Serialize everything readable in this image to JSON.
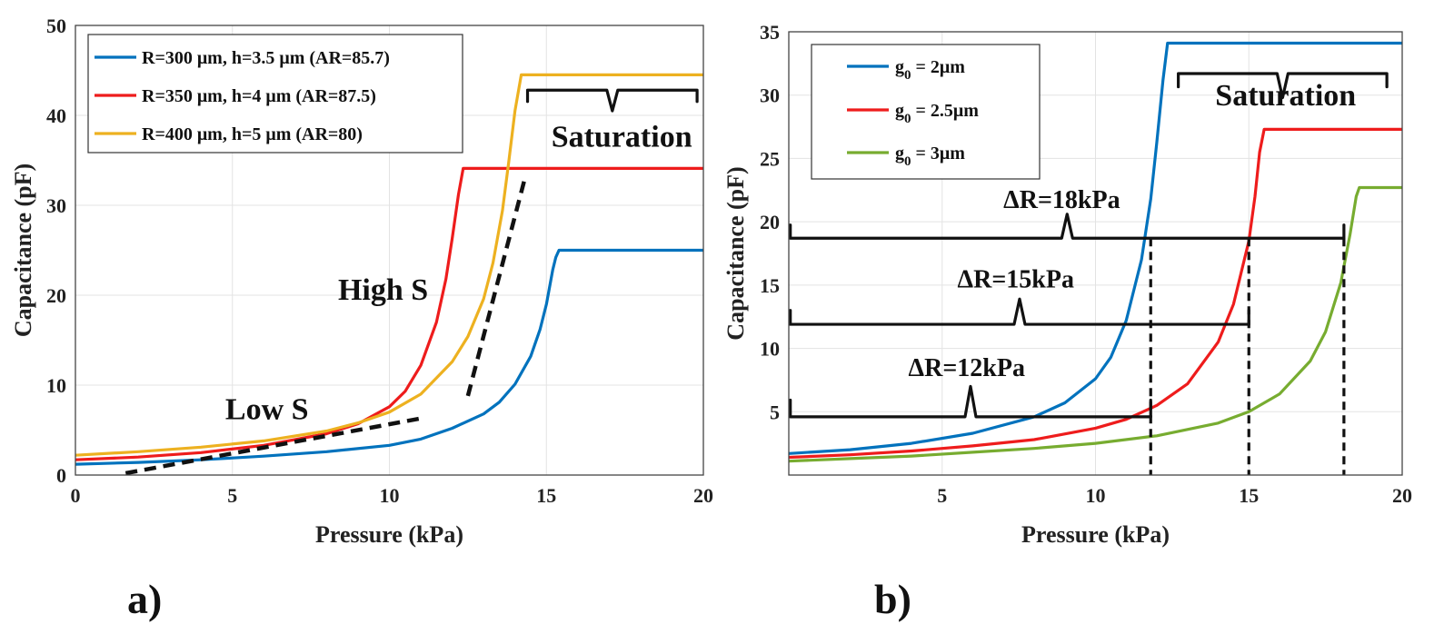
{
  "chart_data": [
    {
      "panel_label": "a)",
      "type": "line",
      "xlabel": "Pressure (kPa)",
      "ylabel": "Capacitance (pF)",
      "xlim": [
        0,
        20
      ],
      "ylim": [
        0,
        50
      ],
      "xticks": [
        0,
        5,
        10,
        15,
        20
      ],
      "yticks": [
        0,
        10,
        20,
        30,
        40,
        50
      ],
      "grid": true,
      "legend_position": "top-left",
      "series": [
        {
          "name": "R=300 μm, h=3.5 μm (AR=85.7)",
          "color": "#0072bd",
          "x": [
            0,
            2,
            4,
            6,
            8,
            10,
            11,
            12,
            13,
            13.5,
            14,
            14.5,
            14.8,
            15,
            15.2,
            15.3,
            15.4,
            20
          ],
          "y": [
            1.2,
            1.4,
            1.7,
            2.1,
            2.6,
            3.3,
            4.0,
            5.2,
            6.8,
            8.1,
            10.1,
            13.2,
            16.2,
            19.0,
            22.8,
            24.2,
            25.0,
            25.0
          ]
        },
        {
          "name": "R=350 μm, h=4 μm (AR=87.5)",
          "color": "#ee1c1c",
          "x": [
            0,
            2,
            4,
            6,
            8,
            9,
            10,
            10.5,
            11,
            11.5,
            11.8,
            12,
            12.2,
            12.35,
            20
          ],
          "y": [
            1.7,
            2.0,
            2.5,
            3.3,
            4.6,
            5.7,
            7.6,
            9.3,
            12.2,
            17.0,
            21.8,
            26.3,
            31.2,
            34.1,
            34.1
          ]
        },
        {
          "name": "R=400 μm, h=5 μm (AR=80)",
          "color": "#edb120",
          "x": [
            0,
            2,
            4,
            6,
            8,
            9,
            10,
            11,
            12,
            12.5,
            13,
            13.3,
            13.6,
            13.8,
            14,
            14.2,
            20
          ],
          "y": [
            2.2,
            2.6,
            3.1,
            3.8,
            4.9,
            5.8,
            7.0,
            9.0,
            12.6,
            15.4,
            19.6,
            23.6,
            29.4,
            34.8,
            40.5,
            44.5,
            44.5
          ]
        }
      ],
      "guides": [
        {
          "type": "dashed-line",
          "x": [
            1.6,
            11.0
          ],
          "y": [
            0.2,
            6.3
          ]
        },
        {
          "type": "dashed-line",
          "x": [
            12.5,
            14.3
          ],
          "y": [
            8.8,
            32.8
          ]
        }
      ],
      "annotations": [
        {
          "text": "Low S",
          "x": 6.1,
          "y": 6.2
        },
        {
          "text": "High S",
          "x": 9.8,
          "y": 19.5
        },
        {
          "text": "Saturation",
          "x": 17.4,
          "y": 36.5
        }
      ],
      "braces": [
        {
          "x_from": 14.4,
          "x_to": 19.8,
          "y": 42.8,
          "tip_y": 40.5
        }
      ]
    },
    {
      "panel_label": "b)",
      "type": "line",
      "xlabel": "Pressure (kPa)",
      "ylabel": "Capacitance (pF)",
      "xlim": [
        0,
        20
      ],
      "ylim": [
        0,
        35
      ],
      "xticks": [
        5,
        10,
        15,
        20
      ],
      "yticks": [
        5,
        10,
        15,
        20,
        25,
        30,
        35
      ],
      "grid": true,
      "legend_position": "top-left",
      "series": [
        {
          "name_base": "g",
          "name_sub": "0",
          "name_rest": " = 2μm",
          "color": "#0072bd",
          "x": [
            0,
            2,
            4,
            6,
            8,
            9,
            10,
            10.5,
            11,
            11.5,
            11.8,
            12,
            12.2,
            12.35,
            20
          ],
          "y": [
            1.7,
            2.0,
            2.5,
            3.3,
            4.6,
            5.7,
            7.6,
            9.3,
            12.2,
            17.0,
            21.8,
            26.3,
            31.2,
            34.1,
            34.1
          ]
        },
        {
          "name_base": "g",
          "name_sub": "0",
          "name_rest": " = 2.5μm",
          "color": "#ee1c1c",
          "x": [
            0,
            2,
            4,
            6,
            8,
            10,
            11,
            12,
            13,
            14,
            14.5,
            15,
            15.2,
            15.35,
            15.5,
            20
          ],
          "y": [
            1.4,
            1.6,
            1.9,
            2.3,
            2.8,
            3.7,
            4.4,
            5.5,
            7.2,
            10.5,
            13.5,
            18.5,
            22.0,
            25.5,
            27.3,
            27.3
          ]
        },
        {
          "name_base": "g",
          "name_sub": "0",
          "name_rest": " = 3μm",
          "color": "#77ac30",
          "x": [
            0,
            2,
            4,
            6,
            8,
            10,
            12,
            14,
            15,
            16,
            17,
            17.5,
            18,
            18.3,
            18.5,
            18.6,
            20
          ],
          "y": [
            1.1,
            1.3,
            1.5,
            1.8,
            2.1,
            2.5,
            3.1,
            4.1,
            5.0,
            6.4,
            9.0,
            11.3,
            15.2,
            19.0,
            22.0,
            22.7,
            22.7
          ]
        }
      ],
      "guides": [
        {
          "type": "dashed-vertical",
          "x": 11.8,
          "y_top": 18.7
        },
        {
          "type": "dashed-vertical",
          "x": 15.0,
          "y_top": 18.7
        },
        {
          "type": "dashed-vertical",
          "x": 18.1,
          "y_top": 18.7
        }
      ],
      "annotations": [
        {
          "text": "Saturation",
          "x": 16.2,
          "y": 29.2
        },
        {
          "text": "ΔR=18kPa",
          "x": 8.9,
          "y": 21.1
        },
        {
          "text": "ΔR=15kPa",
          "x": 7.4,
          "y": 14.8
        },
        {
          "text": "ΔR=12kPa",
          "x": 5.8,
          "y": 7.8
        }
      ],
      "braces": [
        {
          "x_from": 12.7,
          "x_to": 19.5,
          "y": 31.7,
          "tip_y": 29.8
        },
        {
          "x_from": 0.05,
          "x_to": 18.1,
          "y": 18.7,
          "tip_y": 20.6
        },
        {
          "x_from": 0.05,
          "x_to": 15.0,
          "y": 11.9,
          "tip_y": 13.9
        },
        {
          "x_from": 0.05,
          "x_to": 11.8,
          "y": 4.6,
          "tip_y": 7.0
        }
      ]
    }
  ]
}
